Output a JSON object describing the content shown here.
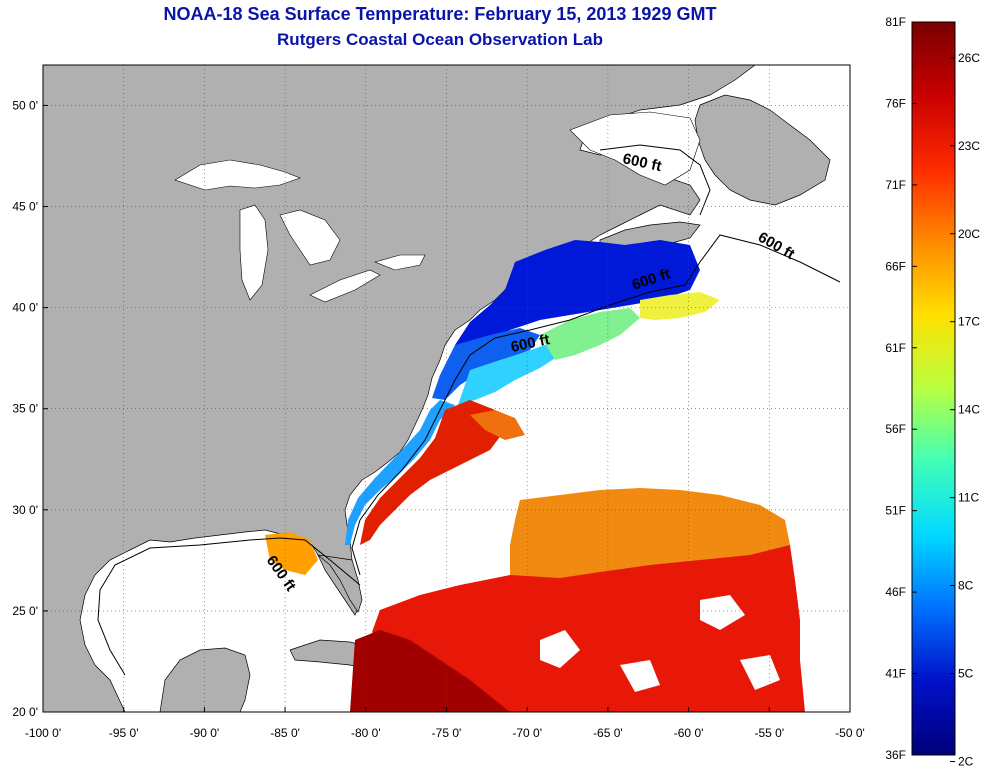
{
  "title": "NOAA-18 Sea Surface Temperature:  February 15, 2013 1929 GMT",
  "subtitle": "Rutgers Coastal Ocean Observation Lab",
  "map": {
    "lon_range": [
      -100,
      -50
    ],
    "lat_range": [
      20,
      52
    ],
    "x_ticks": [
      "-100 0'",
      "-95 0'",
      "-90 0'",
      "-85 0'",
      "-80 0'",
      "-75 0'",
      "-70 0'",
      "-65 0'",
      "-60 0'",
      "-55 0'",
      "-50 0'"
    ],
    "y_ticks": [
      "20 0'",
      "25 0'",
      "30 0'",
      "35 0'",
      "40 0'",
      "45 0'",
      "50 0'"
    ],
    "grid": "dotted",
    "land_color": "#b0b0b0",
    "ocean_nodata_color": "#ffffff"
  },
  "contour_labels": [
    "600 ft",
    "600 ft",
    "600 ft",
    "600 ft",
    "600 ft"
  ],
  "colorbar": {
    "fahrenheit_labels": [
      "81F",
      "76F",
      "71F",
      "66F",
      "61F",
      "56F",
      "51F",
      "46F",
      "41F",
      "36F"
    ],
    "celsius_labels": [
      "26C",
      "23C",
      "20C",
      "17C",
      "14C",
      "11C",
      "8C",
      "5C",
      "2C"
    ],
    "colors": [
      "#7a0000",
      "#c80000",
      "#ff2a00",
      "#ff8a00",
      "#ffe000",
      "#b8ff40",
      "#40ffb8",
      "#00d8ff",
      "#0070ff",
      "#0010c8",
      "#00007a"
    ]
  }
}
